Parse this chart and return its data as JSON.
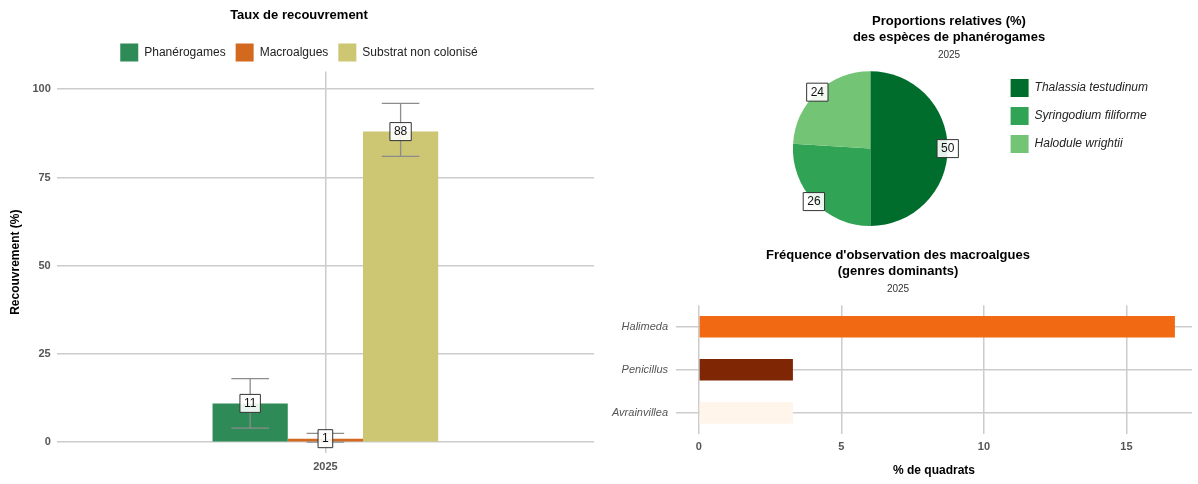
{
  "chart_data": [
    {
      "type": "bar",
      "title": "Taux de recouvrement",
      "ylabel": "Recouvrement (%)",
      "categories": [
        "2025"
      ],
      "series": [
        {
          "name": "Phanérogames",
          "color": "#2e8b57",
          "values": [
            11
          ],
          "errors": [
            [
              4,
              18
            ]
          ]
        },
        {
          "name": "Macroalgues",
          "color": "#d2691e",
          "values": [
            1
          ],
          "errors": [
            [
              0,
              2.5
            ]
          ]
        },
        {
          "name": "Substrat non colonisé",
          "color": "#cdc673",
          "values": [
            88
          ],
          "errors": [
            [
              81,
              96
            ]
          ]
        }
      ],
      "ylim": [
        -3,
        105
      ],
      "yticks": [
        0,
        25,
        50,
        75,
        100
      ],
      "grid": true,
      "legend": "top",
      "data_labels": true
    },
    {
      "type": "pie",
      "title": "Proportions relatives (%)\ndes espèces de phanérogames",
      "subtitle": "2025",
      "categories": [
        "Thalassia testudinum",
        "Syringodium filiforme",
        "Halodule wrightii"
      ],
      "values": [
        50,
        26,
        24
      ],
      "colors": [
        "#006d2c",
        "#31a354",
        "#74c476"
      ],
      "legend": "right",
      "data_labels": true
    },
    {
      "type": "bar",
      "orientation": "horizontal",
      "title": "Fréquence d'observation des macroalgues\n(genres dominants)",
      "subtitle": "2025",
      "xlabel": "% de quadrats",
      "categories": [
        "Halimeda",
        "Penicillus",
        "Avrainvillea"
      ],
      "values": [
        16.7,
        3.3,
        3.3
      ],
      "colors": [
        "#f16913",
        "#7f2704",
        "#fff5eb"
      ],
      "xlim": [
        -0.8,
        17.3
      ],
      "xticks": [
        0,
        5,
        10,
        15
      ],
      "grid": true
    }
  ]
}
